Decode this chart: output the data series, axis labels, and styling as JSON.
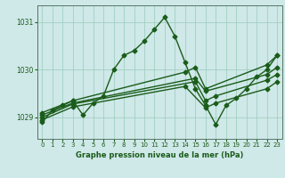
{
  "title": "Graphe pression niveau de la mer (hPa)",
  "background_color": "#cfe8e8",
  "grid_color": "#99ccbb",
  "line_color": "#1a5c1a",
  "x_ticks": [
    0,
    1,
    2,
    3,
    4,
    5,
    6,
    7,
    8,
    9,
    10,
    11,
    12,
    13,
    14,
    15,
    16,
    17,
    18,
    19,
    20,
    21,
    22,
    23
  ],
  "y_ticks": [
    1029,
    1030,
    1031
  ],
  "ylim": [
    1028.55,
    1031.35
  ],
  "xlim": [
    -0.5,
    23.5
  ],
  "lines": [
    {
      "x": [
        0,
        1,
        2,
        3,
        4,
        5,
        6,
        7,
        8,
        9,
        10,
        11,
        12,
        13,
        14,
        15,
        16,
        17,
        18,
        19,
        20,
        21,
        22,
        23
      ],
      "y": [
        1028.9,
        1029.15,
        1029.25,
        1029.35,
        1029.05,
        1029.3,
        1029.45,
        1030.0,
        1030.3,
        1030.4,
        1030.6,
        1030.85,
        1031.1,
        1030.7,
        1030.15,
        1029.6,
        1029.25,
        1028.85,
        1029.25,
        1029.4,
        1029.6,
        1029.85,
        1030.0,
        1030.3
      ],
      "marker": "D",
      "markersize": 2.5,
      "linewidth": 1.0
    },
    {
      "x": [
        0,
        3,
        14,
        15,
        16,
        22,
        23
      ],
      "y": [
        1029.1,
        1029.35,
        1029.95,
        1030.05,
        1029.6,
        1030.1,
        1030.3
      ],
      "marker": "D",
      "markersize": 2.5,
      "linewidth": 1.0
    },
    {
      "x": [
        0,
        3,
        15,
        16,
        22,
        23
      ],
      "y": [
        1029.05,
        1029.3,
        1029.82,
        1029.55,
        1029.9,
        1030.05
      ],
      "marker": "D",
      "markersize": 2.5,
      "linewidth": 1.0
    },
    {
      "x": [
        0,
        3,
        15,
        16,
        17,
        22,
        23
      ],
      "y": [
        1029.0,
        1029.28,
        1029.75,
        1029.35,
        1029.45,
        1029.78,
        1029.9
      ],
      "marker": "D",
      "markersize": 2.5,
      "linewidth": 1.0
    },
    {
      "x": [
        0,
        3,
        14,
        16,
        17,
        22,
        23
      ],
      "y": [
        1028.95,
        1029.22,
        1029.65,
        1029.2,
        1029.3,
        1029.6,
        1029.75
      ],
      "marker": "D",
      "markersize": 2.5,
      "linewidth": 1.0
    }
  ]
}
